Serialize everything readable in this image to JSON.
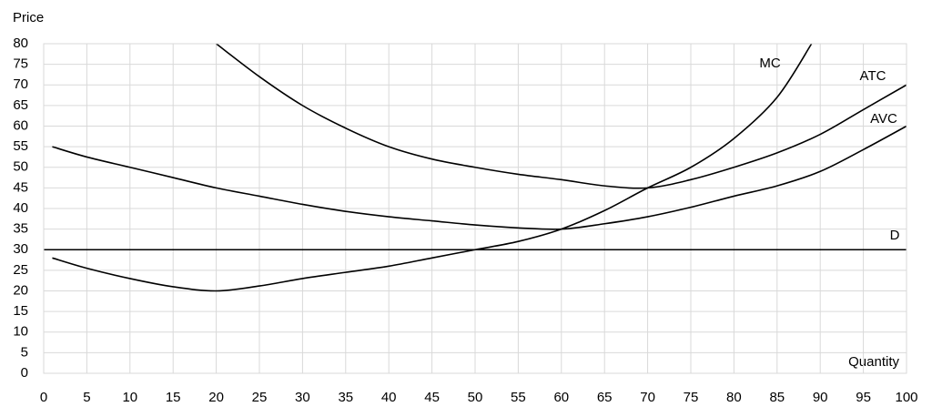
{
  "chart_data": {
    "type": "line",
    "y_label": "Price",
    "x_label": "Quantity",
    "xlim": [
      0,
      100
    ],
    "ylim": [
      0,
      80
    ],
    "xticks": [
      0,
      5,
      10,
      15,
      20,
      25,
      30,
      35,
      40,
      45,
      50,
      55,
      60,
      65,
      70,
      75,
      80,
      85,
      90,
      95,
      100
    ],
    "yticks": [
      0,
      5,
      10,
      15,
      20,
      25,
      30,
      35,
      40,
      45,
      50,
      55,
      60,
      65,
      70,
      75,
      80
    ],
    "grid": true,
    "series": [
      {
        "name": "MC",
        "color": "#000000",
        "x": [
          1,
          5,
          10,
          15,
          20,
          25,
          30,
          35,
          40,
          45,
          50,
          55,
          60,
          65,
          70,
          75,
          80,
          85,
          89
        ],
        "values": [
          28,
          25.5,
          23,
          21,
          20,
          21.2,
          23,
          24.5,
          26,
          28,
          30,
          32,
          35,
          39.5,
          45,
          50,
          57,
          67,
          80
        ]
      },
      {
        "name": "ATC",
        "color": "#000000",
        "x": [
          20,
          25,
          30,
          35,
          40,
          45,
          50,
          55,
          60,
          65,
          70,
          75,
          80,
          85,
          90,
          95,
          100
        ],
        "values": [
          80,
          72,
          65,
          59.5,
          55,
          52,
          50,
          48.3,
          47,
          45.5,
          45,
          47,
          50,
          53.5,
          58,
          64,
          70
        ]
      },
      {
        "name": "AVC",
        "color": "#000000",
        "x": [
          1,
          5,
          10,
          15,
          20,
          25,
          30,
          35,
          40,
          45,
          50,
          55,
          60,
          65,
          70,
          75,
          80,
          85,
          90,
          95,
          100
        ],
        "values": [
          55,
          52.5,
          50,
          47.5,
          45,
          43,
          41,
          39.3,
          38,
          37,
          36,
          35.3,
          35,
          36.3,
          38,
          40.3,
          43,
          45.5,
          49,
          54.3,
          60
        ]
      },
      {
        "name": "D",
        "color": "#000000",
        "x": [
          0,
          100
        ],
        "values": [
          30,
          30
        ]
      }
    ]
  }
}
